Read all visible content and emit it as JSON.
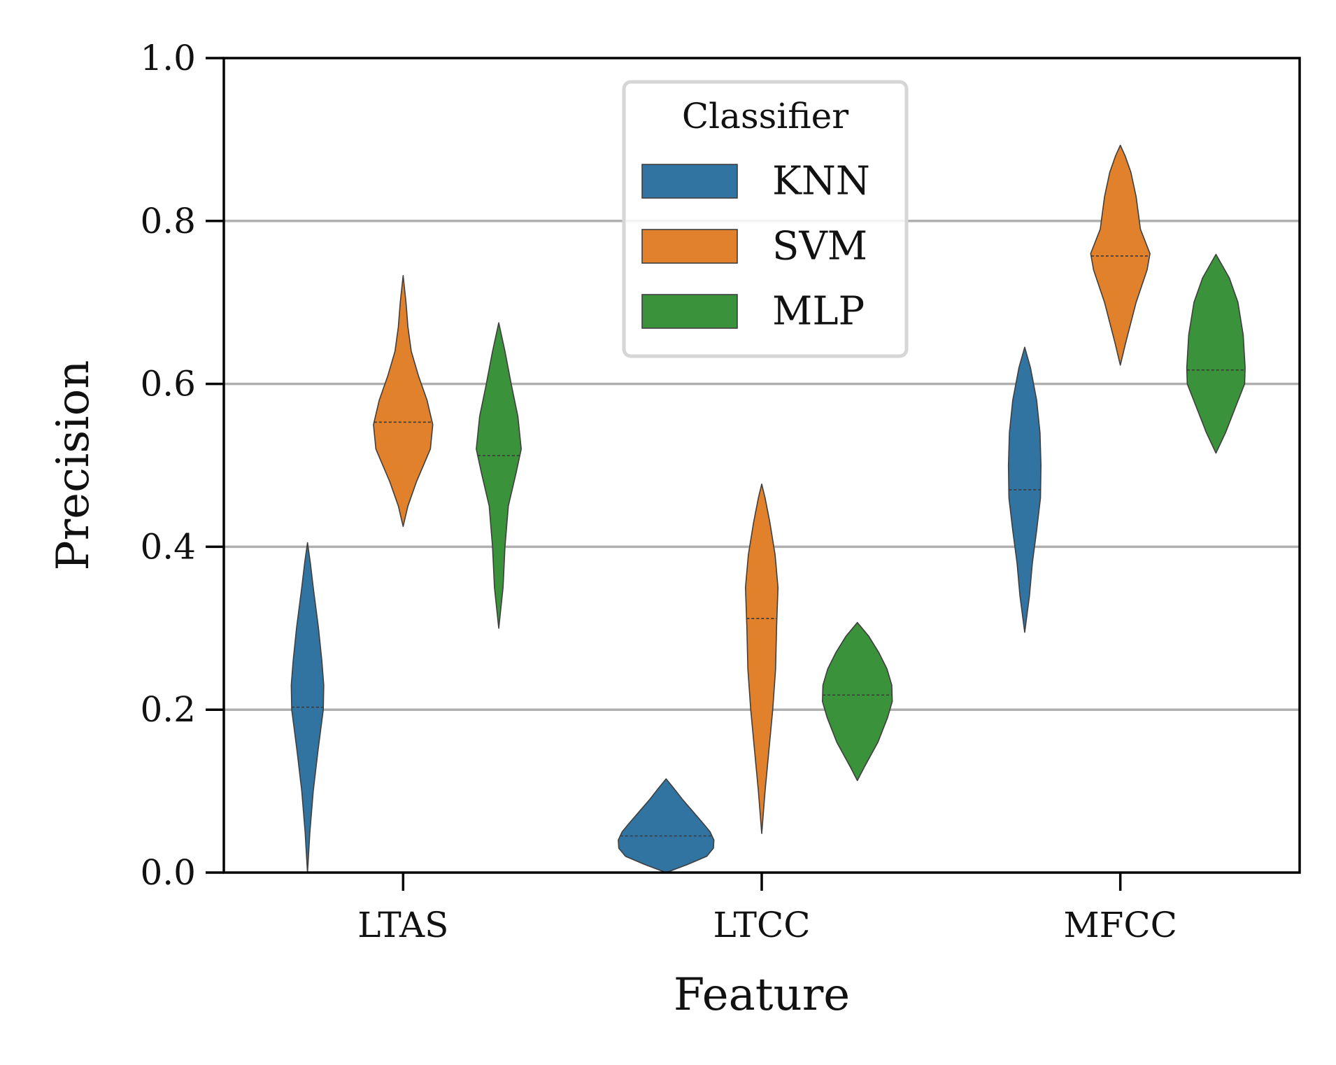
{
  "chart_data": {
    "type": "violin",
    "title": "",
    "xlabel": "Feature",
    "ylabel": "Precision",
    "ylim": [
      0.0,
      1.0
    ],
    "yticks": [
      "0.0",
      "0.2",
      "0.4",
      "0.6",
      "0.8",
      "1.0"
    ],
    "grid": "horizontal",
    "categories": [
      "LTAS",
      "LTCC",
      "MFCC"
    ],
    "legend": {
      "title": "Classifier",
      "placement": "upper center"
    },
    "series": [
      {
        "name": "KNN",
        "color": "#3274a1",
        "violins": [
          {
            "category": "LTAS",
            "median": 0.203,
            "min": 0.0,
            "max": 0.405,
            "profile": [
              [
                0.0,
                0.0
              ],
              [
                0.05,
                0.05
              ],
              [
                0.1,
                0.12
              ],
              [
                0.15,
                0.22
              ],
              [
                0.2,
                0.33
              ],
              [
                0.23,
                0.34
              ],
              [
                0.26,
                0.3
              ],
              [
                0.3,
                0.23
              ],
              [
                0.35,
                0.12
              ],
              [
                0.38,
                0.06
              ],
              [
                0.405,
                0.0
              ]
            ]
          },
          {
            "category": "LTCC",
            "median": 0.045,
            "min": 0.0,
            "max": 0.115,
            "profile": [
              [
                0.0,
                0.0
              ],
              [
                0.01,
                0.45
              ],
              [
                0.02,
                0.85
              ],
              [
                0.03,
                0.99
              ],
              [
                0.04,
                1.0
              ],
              [
                0.05,
                0.92
              ],
              [
                0.06,
                0.78
              ],
              [
                0.075,
                0.56
              ],
              [
                0.09,
                0.34
              ],
              [
                0.105,
                0.14
              ],
              [
                0.115,
                0.0
              ]
            ]
          },
          {
            "category": "MFCC",
            "median": 0.47,
            "min": 0.295,
            "max": 0.645,
            "profile": [
              [
                0.295,
                0.0
              ],
              [
                0.34,
                0.1
              ],
              [
                0.38,
                0.16
              ],
              [
                0.42,
                0.25
              ],
              [
                0.46,
                0.33
              ],
              [
                0.5,
                0.34
              ],
              [
                0.54,
                0.32
              ],
              [
                0.58,
                0.25
              ],
              [
                0.62,
                0.12
              ],
              [
                0.645,
                0.0
              ]
            ]
          }
        ]
      },
      {
        "name": "SVM",
        "color": "#e1812c",
        "violins": [
          {
            "category": "LTAS",
            "median": 0.553,
            "min": 0.425,
            "max": 0.733,
            "profile": [
              [
                0.425,
                0.0
              ],
              [
                0.45,
                0.1
              ],
              [
                0.48,
                0.28
              ],
              [
                0.52,
                0.57
              ],
              [
                0.55,
                0.62
              ],
              [
                0.58,
                0.5
              ],
              [
                0.61,
                0.32
              ],
              [
                0.64,
                0.17
              ],
              [
                0.67,
                0.1
              ],
              [
                0.7,
                0.06
              ],
              [
                0.733,
                0.0
              ]
            ]
          },
          {
            "category": "LTCC",
            "median": 0.312,
            "min": 0.048,
            "max": 0.477,
            "profile": [
              [
                0.048,
                0.0
              ],
              [
                0.1,
                0.07
              ],
              [
                0.15,
                0.15
              ],
              [
                0.2,
                0.23
              ],
              [
                0.25,
                0.29
              ],
              [
                0.3,
                0.31
              ],
              [
                0.35,
                0.34
              ],
              [
                0.39,
                0.28
              ],
              [
                0.43,
                0.17
              ],
              [
                0.46,
                0.07
              ],
              [
                0.477,
                0.0
              ]
            ]
          },
          {
            "category": "MFCC",
            "median": 0.757,
            "min": 0.623,
            "max": 0.893,
            "profile": [
              [
                0.623,
                0.0
              ],
              [
                0.65,
                0.11
              ],
              [
                0.7,
                0.33
              ],
              [
                0.74,
                0.56
              ],
              [
                0.76,
                0.62
              ],
              [
                0.79,
                0.42
              ],
              [
                0.83,
                0.33
              ],
              [
                0.86,
                0.22
              ],
              [
                0.88,
                0.1
              ],
              [
                0.893,
                0.0
              ]
            ]
          }
        ]
      },
      {
        "name": "MLP",
        "color": "#3a923a",
        "violins": [
          {
            "category": "LTAS",
            "median": 0.512,
            "min": 0.3,
            "max": 0.675,
            "profile": [
              [
                0.3,
                0.0
              ],
              [
                0.35,
                0.09
              ],
              [
                0.4,
                0.13
              ],
              [
                0.45,
                0.2
              ],
              [
                0.49,
                0.36
              ],
              [
                0.52,
                0.47
              ],
              [
                0.56,
                0.4
              ],
              [
                0.6,
                0.26
              ],
              [
                0.64,
                0.13
              ],
              [
                0.675,
                0.0
              ]
            ]
          },
          {
            "category": "LTCC",
            "median": 0.218,
            "min": 0.113,
            "max": 0.307,
            "profile": [
              [
                0.113,
                0.0
              ],
              [
                0.13,
                0.15
              ],
              [
                0.16,
                0.43
              ],
              [
                0.19,
                0.63
              ],
              [
                0.21,
                0.73
              ],
              [
                0.23,
                0.72
              ],
              [
                0.25,
                0.62
              ],
              [
                0.27,
                0.45
              ],
              [
                0.29,
                0.24
              ],
              [
                0.307,
                0.0
              ]
            ]
          },
          {
            "category": "MFCC",
            "median": 0.617,
            "min": 0.515,
            "max": 0.759,
            "profile": [
              [
                0.515,
                0.0
              ],
              [
                0.54,
                0.2
              ],
              [
                0.57,
                0.4
              ],
              [
                0.6,
                0.6
              ],
              [
                0.62,
                0.61
              ],
              [
                0.66,
                0.57
              ],
              [
                0.7,
                0.46
              ],
              [
                0.73,
                0.28
              ],
              [
                0.759,
                0.0
              ]
            ]
          }
        ]
      }
    ]
  }
}
